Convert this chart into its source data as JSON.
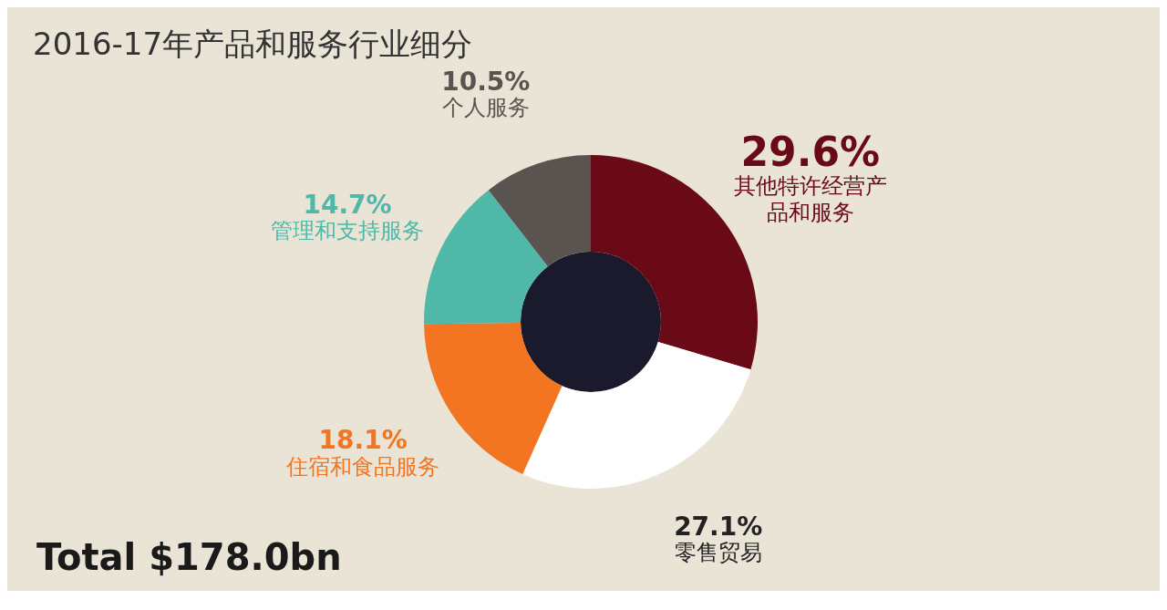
{
  "chart_data": {
    "type": "donut",
    "title": "2016-17年产品和服务行业细分",
    "categories": [
      "其他特许经营产品和服务",
      "零售贸易",
      "住宿和食品服务",
      "管理和支持服务",
      "个人服务"
    ],
    "values": [
      29.6,
      27.1,
      18.1,
      14.7,
      10.5
    ],
    "colors": [
      "#6b0a17",
      "#ffffff",
      "#f47521",
      "#4fb8a8",
      "#5a5450"
    ],
    "value_labels": [
      "29.6%",
      "27.1%",
      "18.1%",
      "14.7%",
      "10.5%"
    ],
    "annotations": [
      "Total $178.0bn"
    ]
  }
}
